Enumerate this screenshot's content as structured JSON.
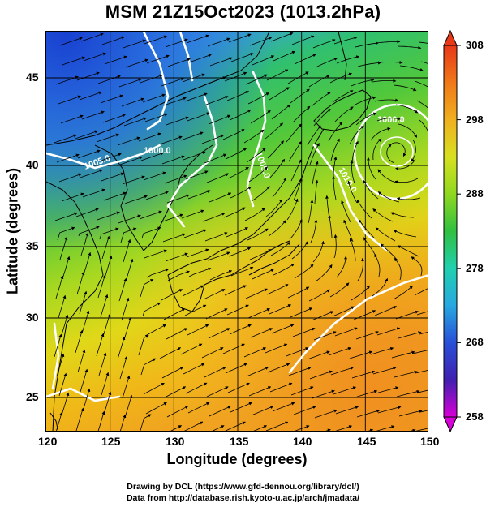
{
  "title": "MSM 21Z15Oct2023 (1013.2hPa)",
  "axes": {
    "xlabel": "Longitude (degrees)",
    "ylabel": "Latitude  (degrees)",
    "xticks": [
      "120",
      "125",
      "130",
      "135",
      "140",
      "145",
      "150"
    ],
    "yticks": [
      "25",
      "30",
      "35",
      "40",
      "45"
    ],
    "xlim": [
      120,
      150
    ],
    "ylim": [
      22.4,
      47.6
    ]
  },
  "colorbar": {
    "ticks": [
      "308",
      "298",
      "288",
      "278",
      "268",
      "258"
    ],
    "range": [
      258,
      308
    ],
    "colors": [
      "#d800d8",
      "#4020b0",
      "#2850d8",
      "#28a8e0",
      "#20d0b0",
      "#30c040",
      "#90d820",
      "#d8e020",
      "#f0b020",
      "#f07818",
      "#e83818"
    ]
  },
  "contour_labels": [
    "1000.0",
    "1000.0",
    "1005.0",
    "1005.0",
    "1010.0"
  ],
  "footer": {
    "line1": "Drawing by DCL (https://www.gfd-dennou.org/library/dcl/)",
    "line2": "Data from http://database.rish.kyoto-u.ac.jp/arch/jmadata/"
  }
}
